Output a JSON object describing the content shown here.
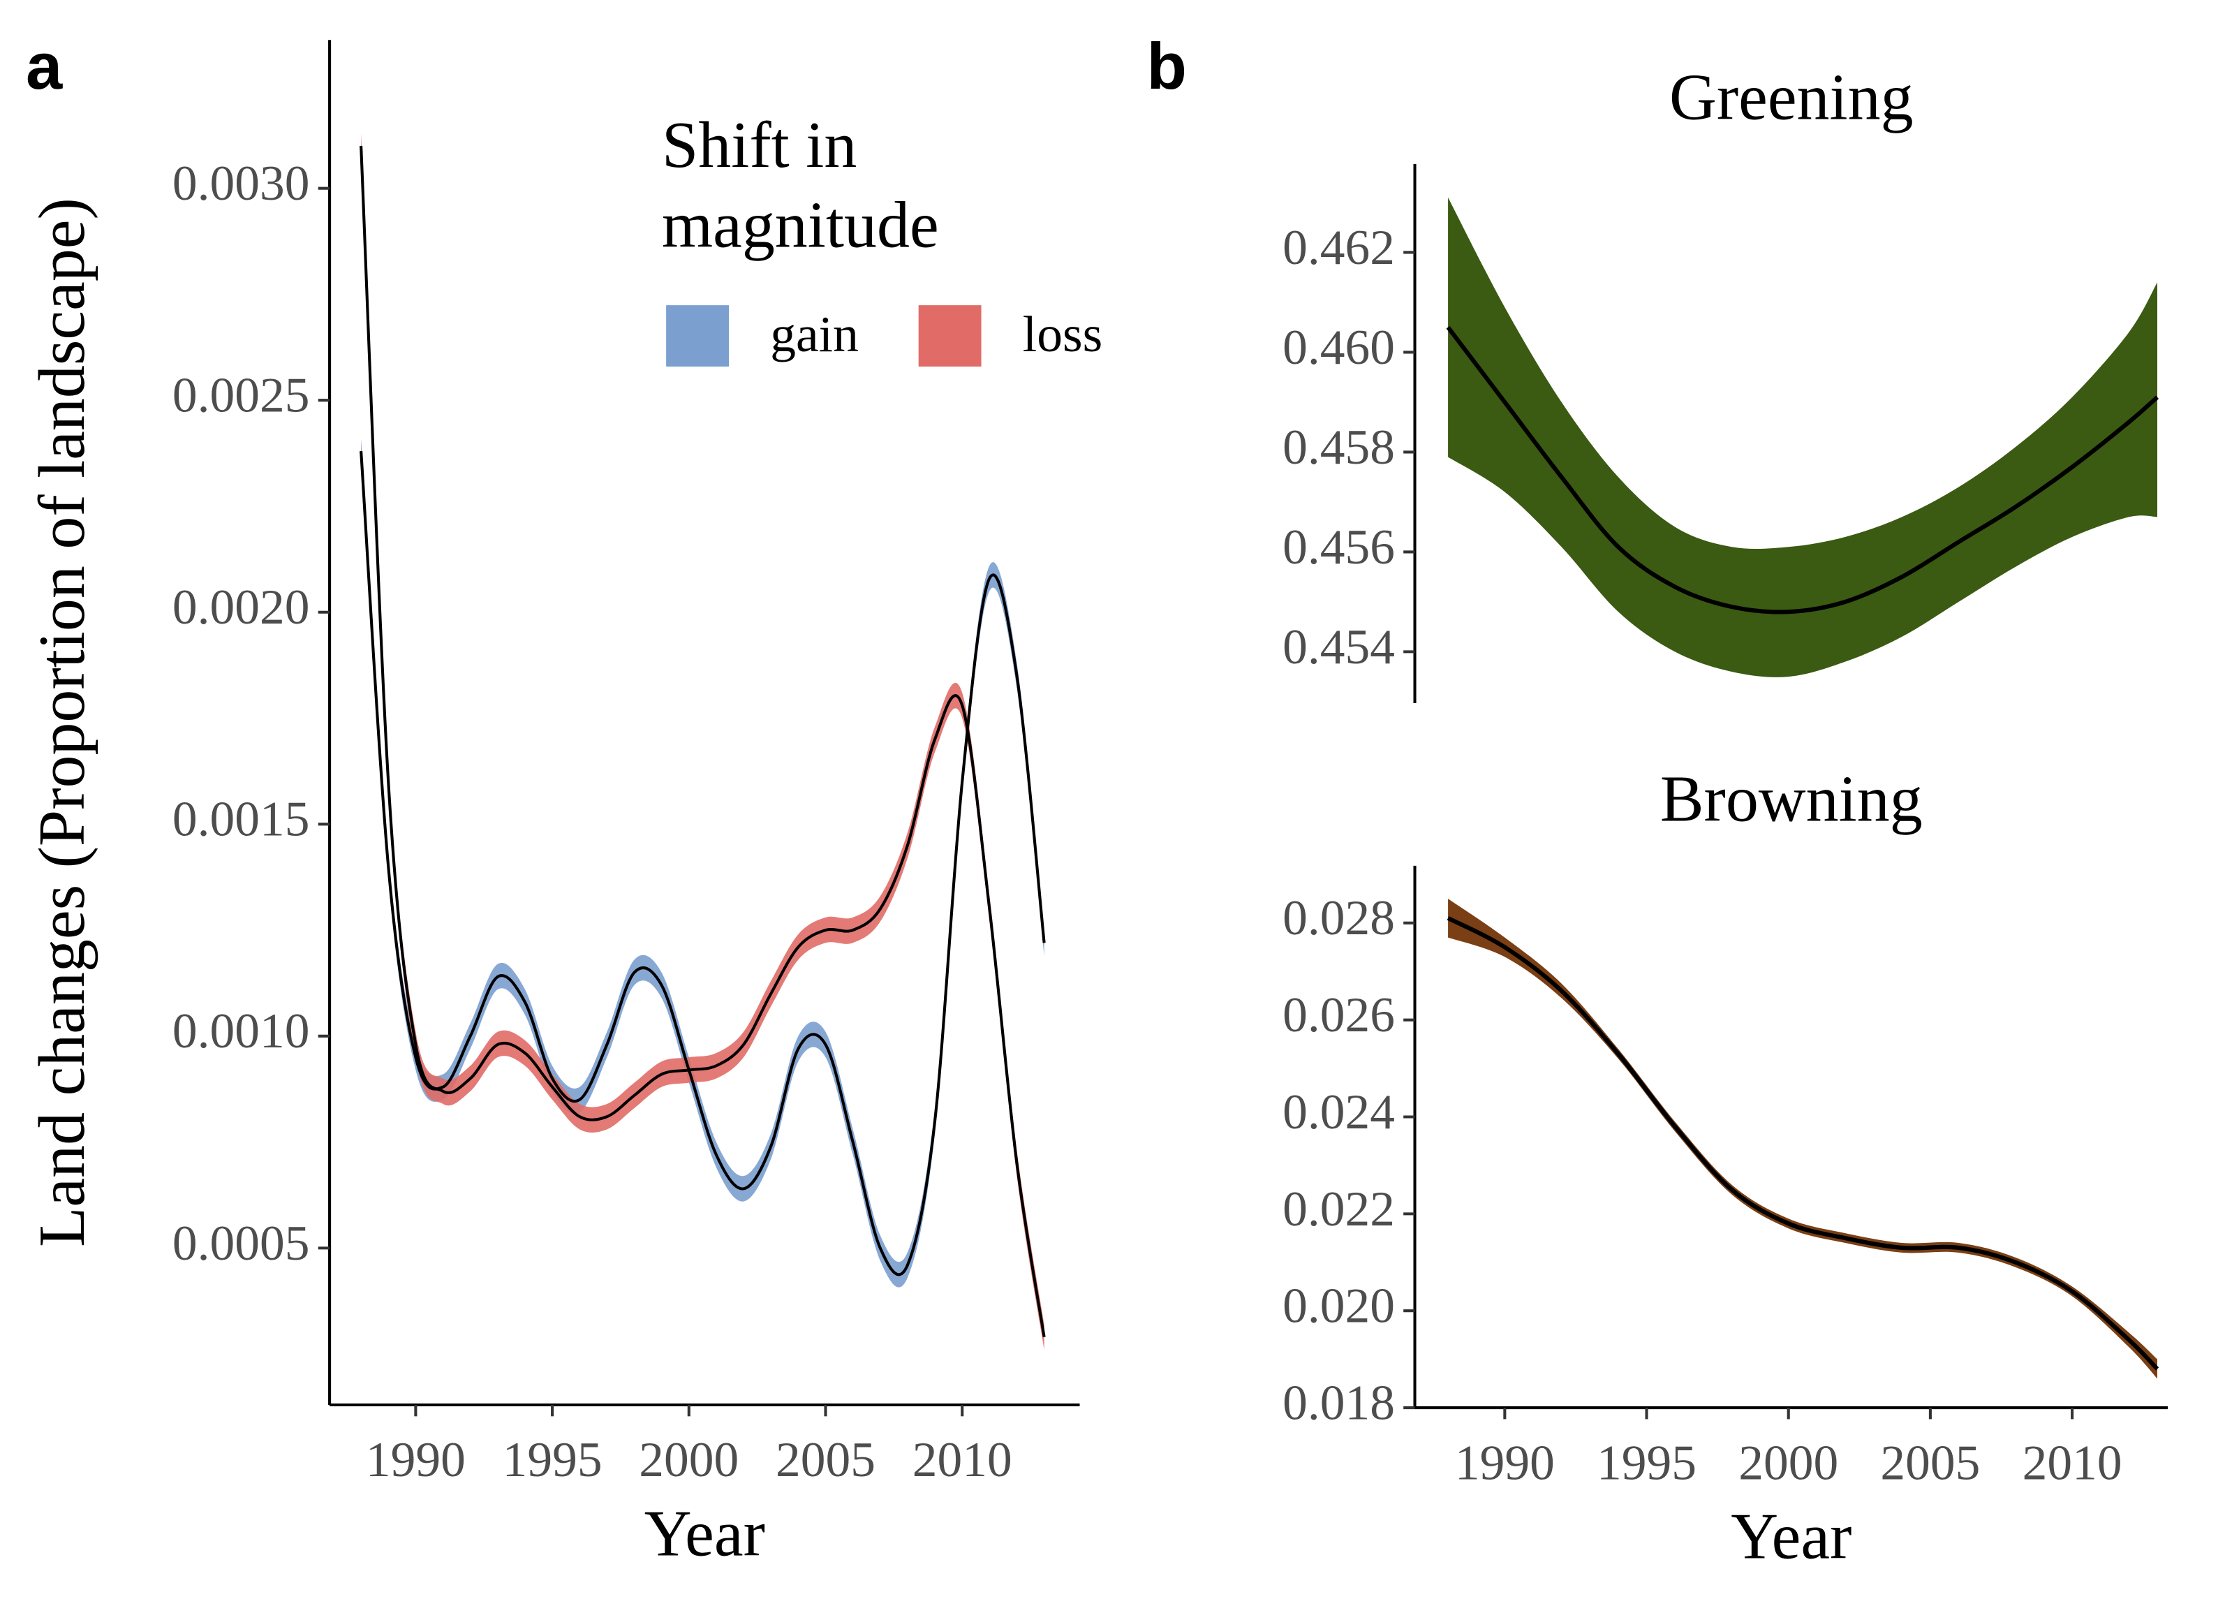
{
  "chart_data": [
    {
      "type": "line",
      "panel": "a",
      "y_label": "Land changes (Proportion of landscape)",
      "x_label": "Year",
      "legend_title": "Shift in magnitude",
      "x": [
        1988,
        1989,
        1990,
        1991,
        1992,
        1993,
        1994,
        1995,
        1996,
        1997,
        1998,
        1999,
        2000,
        2001,
        2002,
        2003,
        2004,
        2005,
        2006,
        2007,
        2008,
        2009,
        2010,
        2011,
        2012,
        2013
      ],
      "series": [
        {
          "name": "gain",
          "color": "#7b9fcf",
          "error": 3e-05,
          "values": [
            0.00238,
            0.0014,
            0.00095,
            0.00088,
            0.001,
            0.00114,
            0.00108,
            0.0009,
            0.00085,
            0.00098,
            0.00115,
            0.00112,
            0.00092,
            0.00072,
            0.00064,
            0.00074,
            0.00097,
            0.00098,
            0.00075,
            0.0005,
            0.00046,
            0.0008,
            0.0016,
            0.00208,
            0.00185,
            0.00122
          ]
        },
        {
          "name": "loss",
          "color": "#e06b67",
          "error": 3e-05,
          "values": [
            0.0031,
            0.0016,
            0.00098,
            0.00087,
            0.0009,
            0.00098,
            0.00096,
            0.00088,
            0.00081,
            0.00081,
            0.00086,
            0.00091,
            0.00092,
            0.00093,
            0.00098,
            0.0011,
            0.00121,
            0.00125,
            0.00125,
            0.0013,
            0.00145,
            0.0017,
            0.00178,
            0.0013,
            0.0007,
            0.00029
          ]
        }
      ],
      "xlim": [
        1986.85,
        2014.3
      ],
      "xticks": [
        1990,
        1995,
        2000,
        2005,
        2010
      ],
      "ylim": [
        0.00013,
        0.00335
      ],
      "yticks": [
        {
          "value": 0.0005,
          "label": "0.0005"
        },
        {
          "value": 0.001,
          "label": "0.0010"
        },
        {
          "value": 0.0015,
          "label": "0.0015"
        },
        {
          "value": 0.002,
          "label": "0.0020"
        },
        {
          "value": 0.0025,
          "label": "0.0025"
        },
        {
          "value": 0.003,
          "label": "0.0030"
        }
      ]
    },
    {
      "type": "line",
      "panel": "b",
      "title": "Greening",
      "x": [
        1988,
        1990,
        1992,
        1994,
        1996,
        1998,
        2000,
        2002,
        2004,
        2006,
        2008,
        2010,
        2012,
        2013
      ],
      "series": [
        {
          "color": "#3b5a12",
          "values": [
            0.4605,
            0.459,
            0.4575,
            0.4561,
            0.4553,
            0.4549,
            0.4548,
            0.455,
            0.4555,
            0.4562,
            0.4569,
            0.4577,
            0.4586,
            0.4591
          ],
          "lower": [
            0.4579,
            0.4572,
            0.4561,
            0.4548,
            0.454,
            0.4536,
            0.4535,
            0.4538,
            0.4543,
            0.455,
            0.4557,
            0.4563,
            0.4567,
            0.4567
          ],
          "upper": [
            0.4631,
            0.4609,
            0.459,
            0.4575,
            0.4565,
            0.4561,
            0.4561,
            0.4563,
            0.4567,
            0.4573,
            0.4581,
            0.4591,
            0.4604,
            0.4614
          ]
        }
      ],
      "xlim": [
        1986.83,
        2013.37
      ],
      "ylim": [
        0.45297,
        0.46377
      ],
      "yticks": [
        {
          "value": 0.454,
          "label": "0.454"
        },
        {
          "value": 0.456,
          "label": "0.456"
        },
        {
          "value": 0.458,
          "label": "0.458"
        },
        {
          "value": 0.46,
          "label": "0.460"
        },
        {
          "value": 0.462,
          "label": "0.462"
        }
      ]
    },
    {
      "type": "line",
      "title": "Browning",
      "x_label": "Year",
      "x": [
        1988,
        1990,
        1992,
        1994,
        1996,
        1998,
        2000,
        2002,
        2004,
        2006,
        2008,
        2010,
        2012,
        2013
      ],
      "series": [
        {
          "color": "#7a3f14",
          "values": [
            0.0281,
            0.0275,
            0.0266,
            0.0253,
            0.0238,
            0.0225,
            0.0218,
            0.0215,
            0.0213,
            0.0213,
            0.021,
            0.0204,
            0.0194,
            0.0188
          ],
          "error": [
            0.0004,
            0.0002,
            0.00015,
            0.0001,
            0.0001,
            0.0001,
            0.0001,
            0.0001,
            0.0001,
            0.0001,
            0.0001,
            0.0001,
            0.00015,
            0.0002
          ]
        }
      ],
      "xlim": [
        1986.83,
        2013.37
      ],
      "xticks": [
        1990,
        1995,
        2000,
        2005,
        2010
      ],
      "ylim": [
        0.018,
        0.02918
      ],
      "yticks": [
        {
          "value": 0.018,
          "label": "0.018"
        },
        {
          "value": 0.02,
          "label": "0.020"
        },
        {
          "value": 0.022,
          "label": "0.022"
        },
        {
          "value": 0.024,
          "label": "0.024"
        },
        {
          "value": 0.026,
          "label": "0.026"
        },
        {
          "value": 0.028,
          "label": "0.028"
        }
      ]
    }
  ]
}
